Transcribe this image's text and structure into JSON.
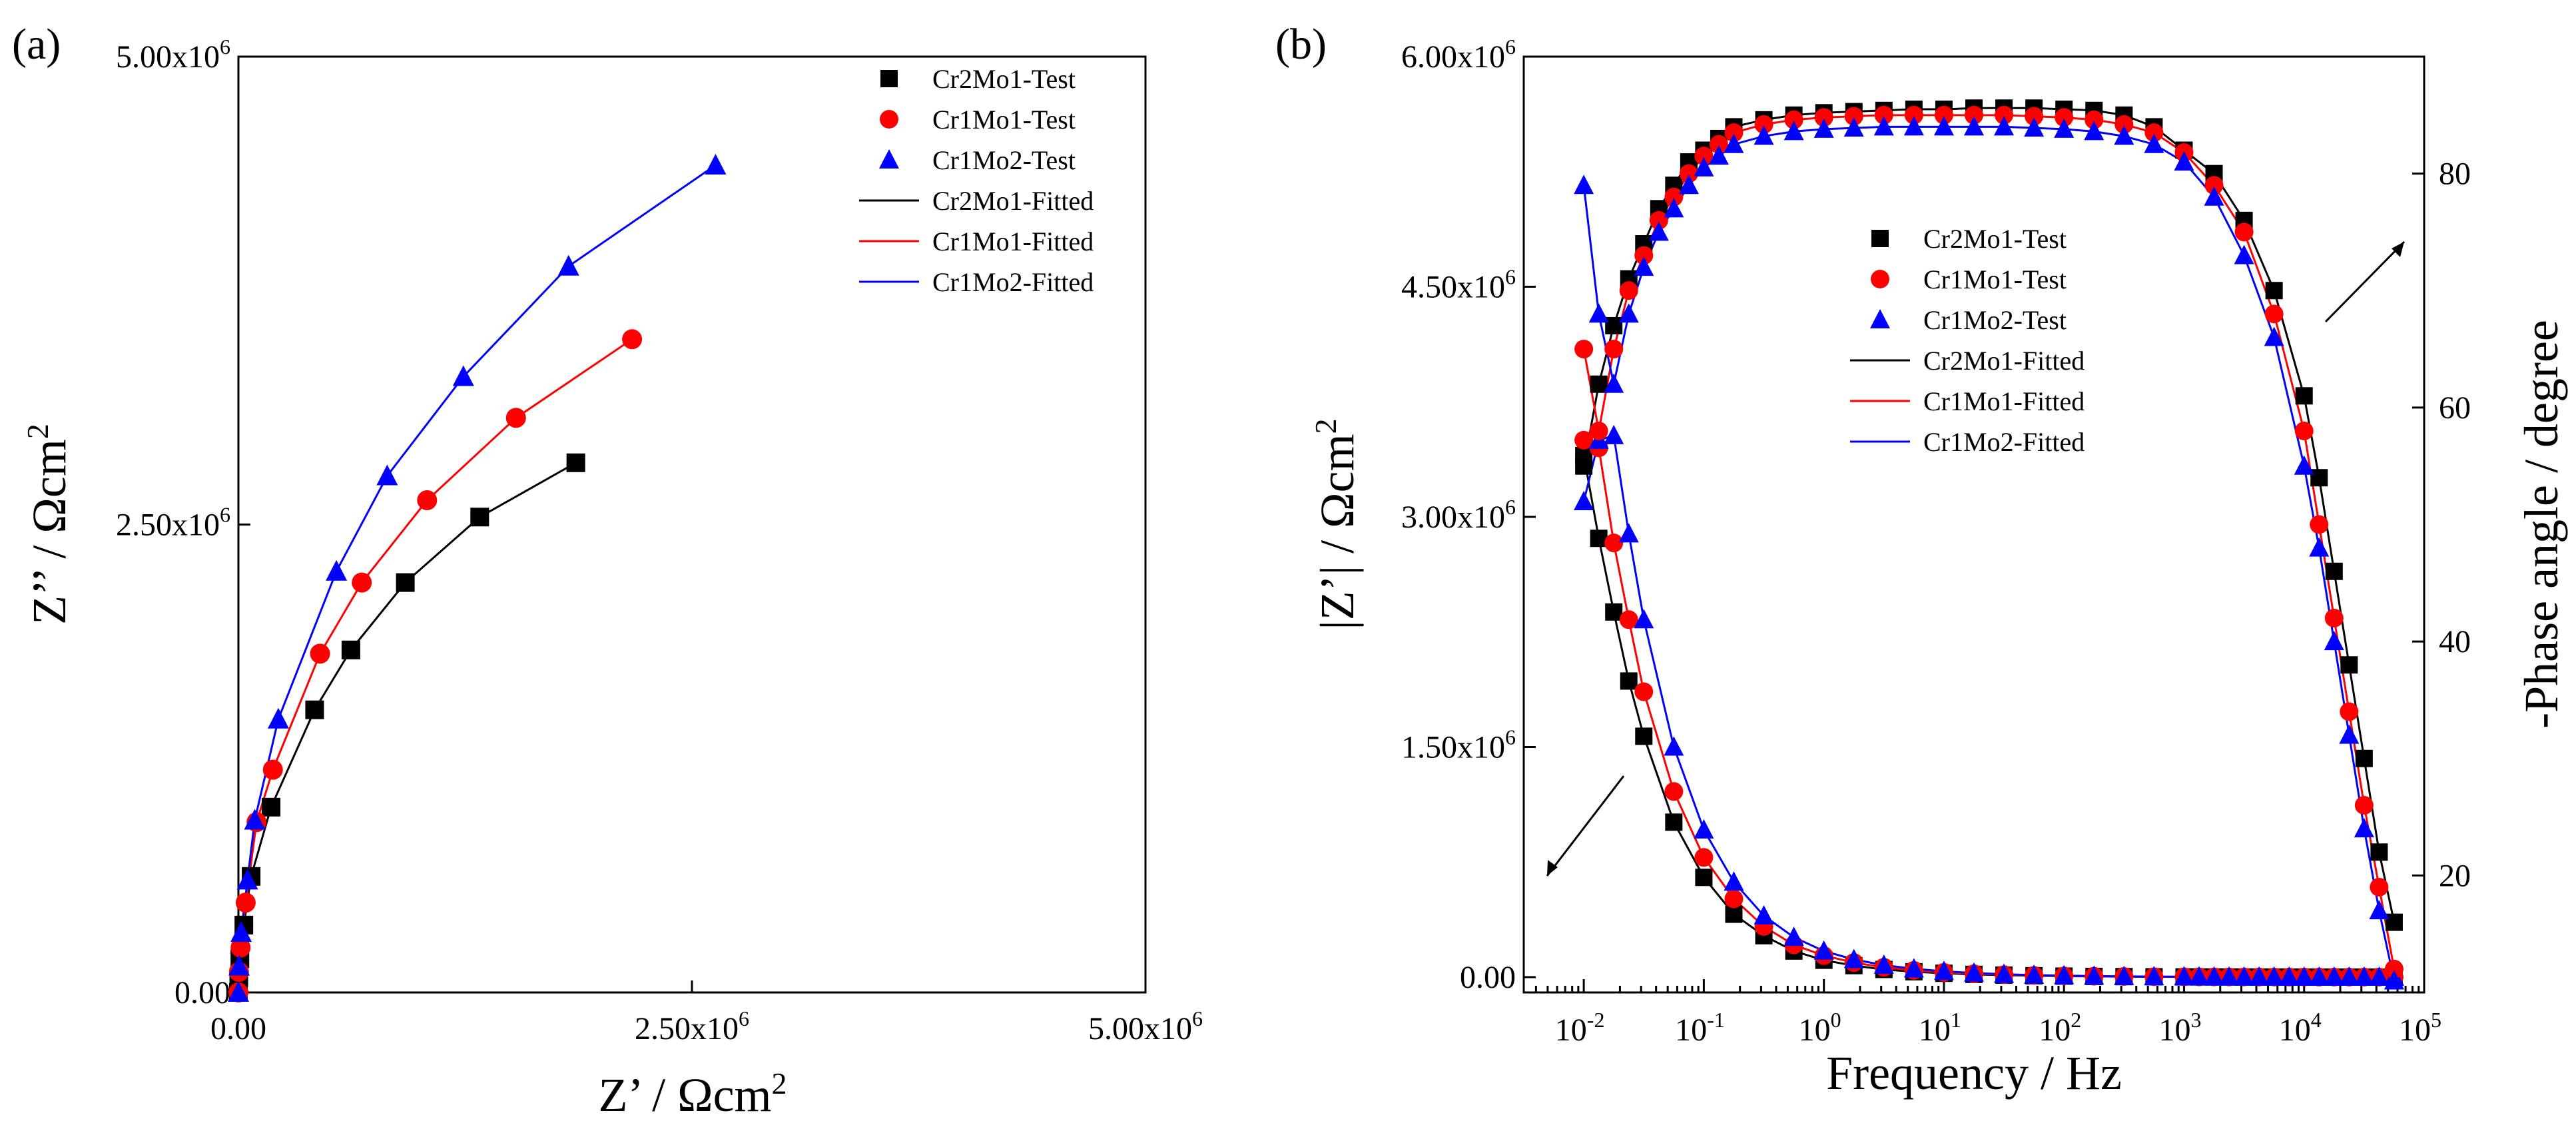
{
  "chart_data": [
    {
      "panel_label": "(a)",
      "type": "scatter",
      "title": "",
      "xlabel": "Z’ / Ωcm²",
      "ylabel": "Z’’ / Ωcm²",
      "xlim": [
        0,
        5000000
      ],
      "ylim": [
        0,
        5000000
      ],
      "x_ticks": [
        0,
        2500000,
        5000000
      ],
      "x_tick_labels": [
        {
          "base": "0.00",
          "exp": ""
        },
        {
          "base": "2.50x10",
          "exp": "6"
        },
        {
          "base": "5.00x10",
          "exp": "6"
        }
      ],
      "y_ticks": [
        0,
        2500000,
        5000000
      ],
      "y_tick_labels": [
        {
          "base": "0.00",
          "exp": ""
        },
        {
          "base": "2.50x10",
          "exp": "6"
        },
        {
          "base": "5.00x10",
          "exp": "6"
        }
      ],
      "legend_position": "top-right",
      "series": [
        {
          "name": "Cr2Mo1-Test",
          "kind": "markers",
          "marker": "square",
          "color": "#000000",
          "x": [
            0,
            2000,
            8000,
            30000,
            70000,
            180000,
            420000,
            620000,
            920000,
            1330000,
            1860000
          ],
          "y": [
            0,
            80000,
            180000,
            360000,
            620000,
            990000,
            1510000,
            1830000,
            2190000,
            2540000,
            2830000
          ]
        },
        {
          "name": "Cr1Mo1-Test",
          "kind": "markers",
          "marker": "circle",
          "color": "#ff0000",
          "x": [
            0,
            3000,
            12000,
            40000,
            100000,
            190000,
            450000,
            680000,
            1040000,
            1530000,
            2170000
          ],
          "y": [
            0,
            110000,
            240000,
            480000,
            910000,
            1190000,
            1810000,
            2190000,
            2630000,
            3070000,
            3490000
          ]
        },
        {
          "name": "Cr1Mo2-Test",
          "kind": "markers",
          "marker": "triangle",
          "color": "#0000ff",
          "x": [
            0,
            4000,
            15000,
            50000,
            90000,
            220000,
            540000,
            820000,
            1240000,
            1820000,
            2630000
          ],
          "y": [
            0,
            140000,
            320000,
            600000,
            920000,
            1460000,
            2250000,
            2760000,
            3290000,
            3880000,
            4420000
          ]
        },
        {
          "name": "Cr2Mo1-Fitted",
          "kind": "line",
          "color": "#000000",
          "x": [
            0,
            2000,
            8000,
            30000,
            70000,
            180000,
            420000,
            620000,
            920000,
            1330000,
            1860000
          ],
          "y": [
            0,
            80000,
            180000,
            360000,
            620000,
            990000,
            1510000,
            1830000,
            2190000,
            2540000,
            2830000
          ]
        },
        {
          "name": "Cr1Mo1-Fitted",
          "kind": "line",
          "color": "#ff0000",
          "x": [
            0,
            3000,
            12000,
            40000,
            100000,
            190000,
            450000,
            680000,
            1040000,
            1530000,
            2170000
          ],
          "y": [
            0,
            110000,
            240000,
            480000,
            910000,
            1190000,
            1810000,
            2190000,
            2630000,
            3070000,
            3490000
          ]
        },
        {
          "name": "Cr1Mo2-Fitted",
          "kind": "line",
          "color": "#0000ff",
          "x": [
            0,
            4000,
            15000,
            50000,
            90000,
            220000,
            540000,
            820000,
            1240000,
            1820000,
            2630000
          ],
          "y": [
            0,
            140000,
            320000,
            600000,
            920000,
            1460000,
            2250000,
            2760000,
            3290000,
            3880000,
            4420000
          ]
        }
      ]
    },
    {
      "panel_label": "(b)",
      "type": "scatter",
      "title": "",
      "xlabel": "Frequency / Hz",
      "ylabel": "|Z’| / Ωcm²",
      "y2label": "-Phase angle / degree",
      "x_scale": "log",
      "xlim_log10": [
        -2.5,
        5
      ],
      "ylim": [
        -100000,
        6000000
      ],
      "y2lim": [
        10,
        90
      ],
      "x_ticks_log10": [
        -2,
        -1,
        0,
        1,
        2,
        3,
        4,
        5
      ],
      "x_tick_labels": [
        {
          "base": "10",
          "exp": "-2"
        },
        {
          "base": "10",
          "exp": "-1"
        },
        {
          "base": "10",
          "exp": "0"
        },
        {
          "base": "10",
          "exp": "1"
        },
        {
          "base": "10",
          "exp": "2"
        },
        {
          "base": "10",
          "exp": "3"
        },
        {
          "base": "10",
          "exp": "4"
        },
        {
          "base": "10",
          "exp": "5"
        }
      ],
      "y_ticks": [
        0,
        1500000,
        3000000,
        4500000,
        6000000
      ],
      "y_tick_labels": [
        {
          "base": "0.00",
          "exp": ""
        },
        {
          "base": "1.50x10",
          "exp": "6"
        },
        {
          "base": "3.00x10",
          "exp": "6"
        },
        {
          "base": "4.50x10",
          "exp": "6"
        },
        {
          "base": "6.00x10",
          "exp": "6"
        }
      ],
      "y2_ticks": [
        20,
        40,
        60,
        80
      ],
      "y2_tick_labels": [
        "20",
        "40",
        "60",
        "80"
      ],
      "legend_position": "top-center",
      "annotations": [
        "arrow pointing to left axis (|Z’|)",
        "arrow pointing to right axis (phase angle)"
      ],
      "freq_log10": [
        -2,
        -1.875,
        -1.75,
        -1.625,
        -1.5,
        -1.25,
        -1,
        -0.75,
        -0.5,
        -0.25,
        0,
        0.25,
        0.5,
        0.75,
        1,
        1.25,
        1.5,
        1.75,
        2,
        2.25,
        2.5,
        2.75,
        3,
        3.125,
        3.25,
        3.375,
        3.5,
        3.625,
        3.75,
        3.875,
        4,
        4.125,
        4.25,
        4.375,
        4.5,
        4.625,
        4.75
      ],
      "series_impedance": [
        {
          "name": "Cr2Mo1-Test",
          "marker": "square",
          "color": "#000000",
          "y": [
            3400000,
            2860000,
            2380000,
            1930000,
            1570000,
            1010000,
            650000,
            410000,
            270000,
            170000,
            110000,
            75000,
            50000,
            35000,
            25000,
            18000,
            13000,
            9000,
            6500,
            4500,
            3200,
            2300,
            1600,
            1300,
            1100,
            900,
            750,
            600,
            500,
            400,
            330,
            270,
            220,
            180,
            150,
            120,
            100
          ]
        },
        {
          "name": "Cr1Mo1-Test",
          "marker": "circle",
          "color": "#ff0000",
          "y": [
            3500000,
            3450000,
            2830000,
            2330000,
            1860000,
            1210000,
            780000,
            510000,
            330000,
            210000,
            140000,
            95000,
            64000,
            44000,
            31000,
            22000,
            16000,
            11000,
            8000,
            5600,
            4000,
            2800,
            2000,
            1700,
            1400,
            1200,
            1000,
            800,
            650,
            520,
            420,
            340,
            280,
            230,
            190,
            150,
            120
          ]
        },
        {
          "name": "Cr1Mo2-Test",
          "marker": "triangle",
          "color": "#0000ff",
          "y": [
            3100000,
            3500000,
            3530000,
            2890000,
            2330000,
            1500000,
            960000,
            620000,
            400000,
            260000,
            170000,
            115000,
            78000,
            54000,
            38000,
            27000,
            19000,
            13000,
            9500,
            6700,
            4800,
            3400,
            2400,
            2000,
            1700,
            1400,
            1200,
            950,
            780,
            620,
            500,
            410,
            330,
            270,
            220,
            180,
            150
          ]
        }
      ],
      "series_phase": [
        {
          "name": "Cr2Mo1-Test",
          "marker": "square",
          "color": "#000000",
          "freq_log10": [
            -2,
            -1.875,
            -1.75,
            -1.625,
            -1.5,
            -1.375,
            -1.25,
            -1.125,
            -1,
            -0.875,
            -0.75,
            -0.5,
            -0.25,
            0,
            0.25,
            0.5,
            0.75,
            1,
            1.25,
            1.5,
            1.75,
            2,
            2.25,
            2.5,
            2.75,
            3,
            3.25,
            3.5,
            3.75,
            4,
            4.125,
            4.25,
            4.375,
            4.5,
            4.625,
            4.75
          ],
          "deg": [
            55,
            62,
            67,
            71,
            74,
            77,
            79,
            81,
            82,
            83,
            84,
            84.6,
            85,
            85.2,
            85.3,
            85.4,
            85.5,
            85.5,
            85.6,
            85.6,
            85.6,
            85.5,
            85.4,
            85,
            84,
            82,
            80,
            76,
            70,
            61,
            54,
            46,
            38,
            30,
            22,
            16
          ]
        },
        {
          "name": "Cr1Mo1-Test",
          "marker": "circle",
          "color": "#ff0000",
          "freq_log10": [
            -2,
            -1.875,
            -1.75,
            -1.625,
            -1.5,
            -1.375,
            -1.25,
            -1.125,
            -1,
            -0.875,
            -0.75,
            -0.5,
            -0.25,
            0,
            0.25,
            0.5,
            0.75,
            1,
            1.25,
            1.5,
            1.75,
            2,
            2.25,
            2.5,
            2.75,
            3,
            3.25,
            3.5,
            3.75,
            4,
            4.125,
            4.25,
            4.375,
            4.5,
            4.625,
            4.75
          ],
          "deg": [
            65,
            58,
            65,
            70,
            73,
            76,
            78,
            80,
            81.5,
            82.5,
            83.5,
            84.2,
            84.6,
            84.8,
            84.9,
            85,
            85,
            85,
            85,
            85,
            84.9,
            84.8,
            84.6,
            84.2,
            83.5,
            81.8,
            79,
            75,
            68,
            58,
            50,
            42,
            34,
            26,
            19,
            12
          ]
        },
        {
          "name": "Cr1Mo2-Test",
          "marker": "triangle",
          "color": "#0000ff",
          "freq_log10": [
            -2,
            -1.875,
            -1.75,
            -1.625,
            -1.5,
            -1.375,
            -1.25,
            -1.125,
            -1,
            -0.875,
            -0.75,
            -0.5,
            -0.25,
            0,
            0.25,
            0.5,
            0.75,
            1,
            1.25,
            1.5,
            1.75,
            2,
            2.25,
            2.5,
            2.75,
            3,
            3.25,
            3.5,
            3.75,
            4,
            4.125,
            4.25,
            4.375,
            4.5,
            4.625,
            4.75
          ],
          "deg": [
            79,
            68,
            62,
            68,
            72,
            75,
            77,
            79,
            80.5,
            81.5,
            82.5,
            83.2,
            83.6,
            83.8,
            83.9,
            84,
            84,
            84,
            84,
            84,
            83.9,
            83.8,
            83.6,
            83.2,
            82.5,
            81,
            78,
            73,
            66,
            55,
            48,
            40,
            32,
            24,
            17,
            11
          ]
        }
      ],
      "legend_entries": [
        {
          "name": "Cr2Mo1-Test",
          "kind": "markers",
          "marker": "square",
          "color": "#000000"
        },
        {
          "name": "Cr1Mo1-Test",
          "kind": "markers",
          "marker": "circle",
          "color": "#ff0000"
        },
        {
          "name": "Cr1Mo2-Test",
          "kind": "markers",
          "marker": "triangle",
          "color": "#0000ff"
        },
        {
          "name": "Cr2Mo1-Fitted",
          "kind": "line",
          "color": "#000000"
        },
        {
          "name": "Cr1Mo1-Fitted",
          "kind": "line",
          "color": "#ff0000"
        },
        {
          "name": "Cr1Mo2-Fitted",
          "kind": "line",
          "color": "#0000ff"
        }
      ]
    }
  ]
}
